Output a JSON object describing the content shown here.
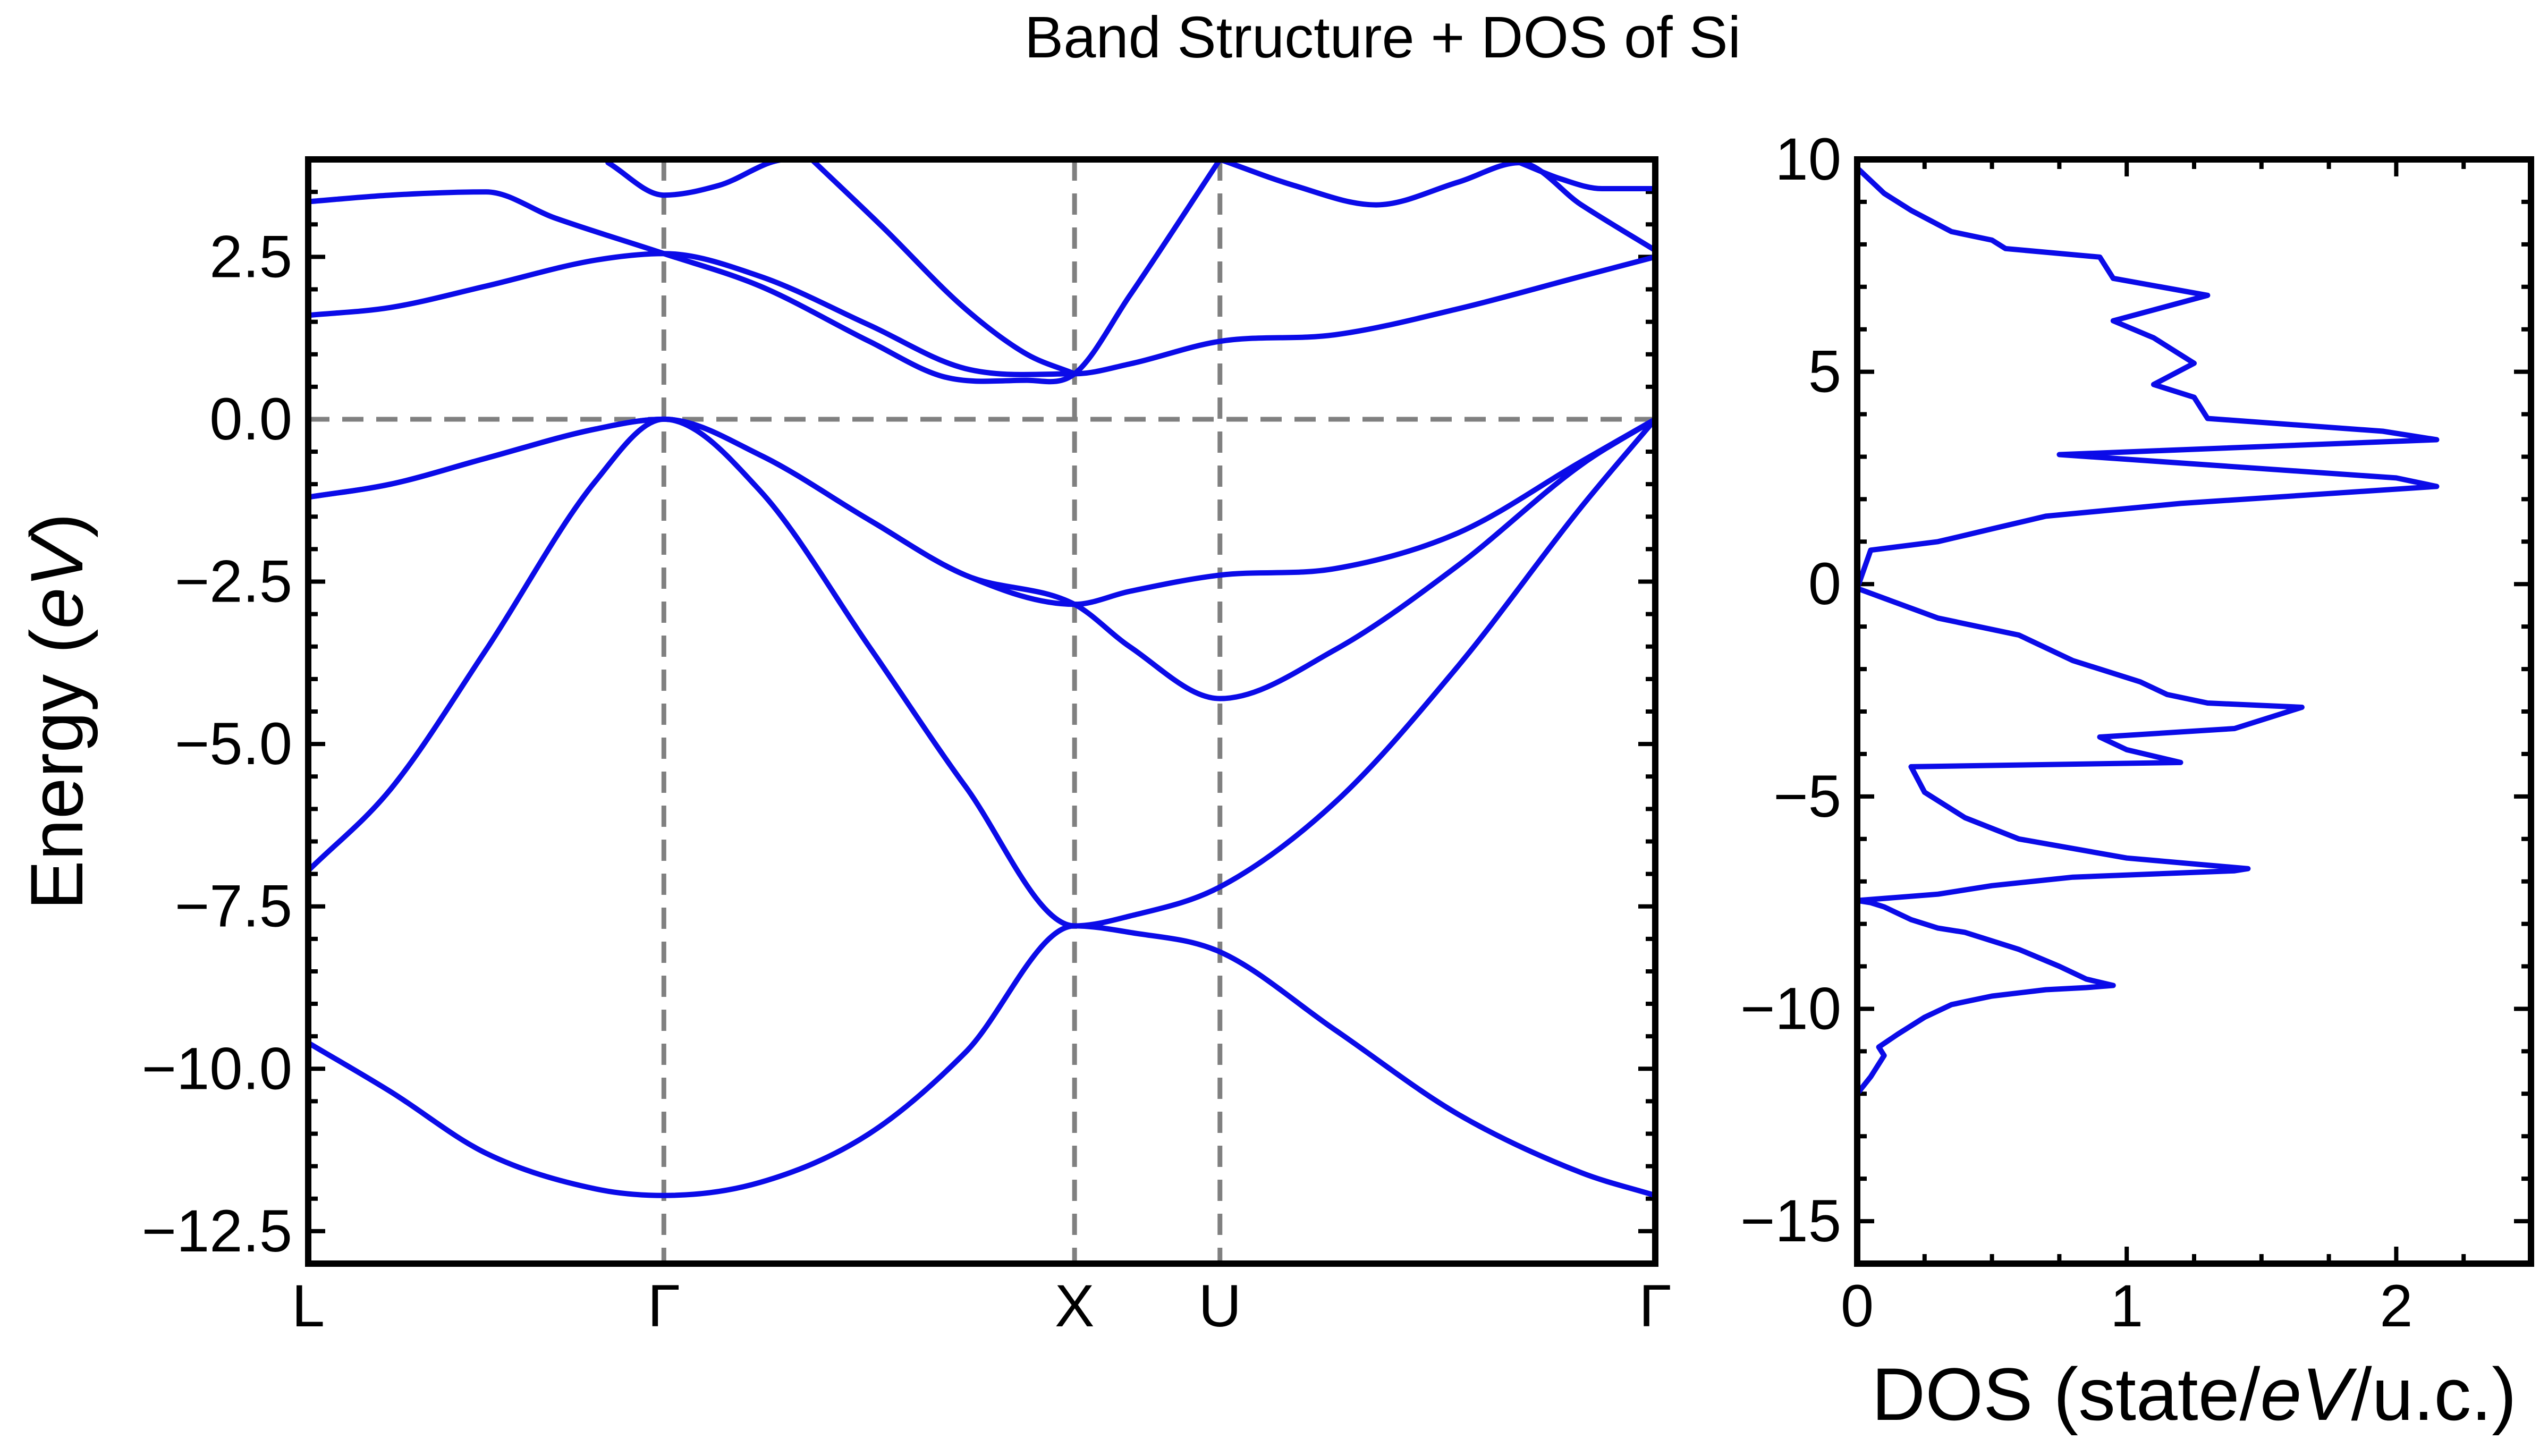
{
  "figure": {
    "title": "Band Structure + DOS of Si"
  },
  "chart_data": [
    {
      "type": "line",
      "name": "band-structure",
      "ylabel_main": "Energy (",
      "ylabel_unit": "eV",
      "ylabel_close": ")",
      "ylim": [
        -13.0,
        4.0
      ],
      "ytick_values": [
        -12.5,
        -10.0,
        -7.5,
        -5.0,
        -2.5,
        0.0,
        2.5
      ],
      "ytick_labels": [
        "−12.5",
        "−10.0",
        "−7.5",
        "−5.0",
        "−2.5",
        "0.0",
        "2.5"
      ],
      "kpoint_positions": [
        0.0,
        0.866,
        1.866,
        2.22,
        3.28
      ],
      "kpoint_labels": [
        "L",
        "Γ",
        "X",
        "U",
        "Γ"
      ],
      "fermi_level": 0.0,
      "grid": false,
      "bands": [
        {
          "x": [
            0,
            0.2,
            0.433,
            0.7,
            0.866,
            1.1,
            1.366,
            1.6,
            1.866,
            2.0,
            2.22,
            2.5,
            2.8,
            3.1,
            3.28
          ],
          "y": [
            -9.6,
            -10.35,
            -11.3,
            -11.85,
            -11.95,
            -11.75,
            -11.0,
            -9.75,
            -7.8,
            -7.9,
            -8.2,
            -9.4,
            -10.7,
            -11.6,
            -11.95
          ]
        },
        {
          "x": [
            0,
            0.2,
            0.433,
            0.7,
            0.866,
            1.1,
            1.366,
            1.6,
            1.866,
            2.0,
            2.22,
            2.5,
            2.8,
            3.1,
            3.28
          ],
          "y": [
            -6.95,
            -5.7,
            -3.55,
            -0.95,
            0.0,
            -1.1,
            -3.5,
            -5.65,
            -7.8,
            -7.65,
            -7.2,
            -5.9,
            -3.8,
            -1.35,
            0.0
          ]
        },
        {
          "x": [
            0,
            0.2,
            0.433,
            0.7,
            0.866,
            1.1,
            1.366,
            1.6,
            1.866,
            2.0,
            2.22,
            2.5,
            2.8,
            3.1,
            3.28
          ],
          "y": [
            -1.2,
            -1.0,
            -0.6,
            -0.15,
            0.0,
            -0.55,
            -1.55,
            -2.4,
            -2.85,
            -3.5,
            -4.3,
            -3.55,
            -2.25,
            -0.7,
            0.0
          ]
        },
        {
          "x": [
            0,
            0.2,
            0.433,
            0.7,
            0.866,
            1.1,
            1.366,
            1.6,
            1.866,
            2.0,
            2.22,
            2.5,
            2.8,
            3.1,
            3.28
          ],
          "y": [
            -1.2,
            -1.0,
            -0.6,
            -0.15,
            0.0,
            -0.55,
            -1.55,
            -2.4,
            -2.85,
            -2.65,
            -2.4,
            -2.3,
            -1.75,
            -0.65,
            0.0
          ]
        },
        {
          "x": [
            0,
            0.2,
            0.433,
            0.7,
            0.866,
            1.1,
            1.366,
            1.6,
            1.866,
            2.0,
            2.22,
            2.5,
            2.8,
            3.1,
            3.28
          ],
          "y": [
            1.6,
            1.72,
            2.05,
            2.45,
            2.55,
            2.2,
            1.45,
            0.78,
            0.7,
            0.85,
            1.2,
            1.3,
            1.7,
            2.2,
            2.5
          ]
        },
        {
          "x": [
            0,
            0.2,
            0.433,
            0.6,
            0.866,
            1.1,
            1.366,
            1.55,
            1.75,
            1.866,
            2.0,
            2.22
          ],
          "y": [
            3.35,
            3.45,
            3.5,
            3.1,
            2.55,
            2.05,
            1.2,
            0.65,
            0.6,
            0.7,
            1.9,
            4.0
          ]
        },
        {
          "x": [
            0.73,
            0.866,
            1.0,
            1.166,
            1.25
          ],
          "y": [
            3.95,
            3.45,
            3.6,
            4.0,
            4.0
          ]
        },
        {
          "x": [
            1.226,
            1.4,
            1.6,
            1.75,
            1.866
          ],
          "y": [
            4.0,
            2.95,
            1.7,
            1.0,
            0.7
          ]
        },
        {
          "x": [
            2.22,
            2.4,
            2.6,
            2.8,
            2.95,
            3.1,
            3.28
          ],
          "y": [
            4.0,
            3.6,
            3.3,
            3.65,
            3.95,
            3.3,
            2.6
          ]
        },
        {
          "x": [
            2.95,
            3.05,
            3.15,
            3.28
          ],
          "y": [
            3.95,
            3.7,
            3.55,
            3.55
          ]
        }
      ]
    },
    {
      "type": "line",
      "name": "dos",
      "xlabel_main": "DOS (state/",
      "xlabel_unit": "eV",
      "xlabel_close": "/u.c.)",
      "xlim": [
        0.0,
        2.5
      ],
      "ylim": [
        -16.0,
        10.0
      ],
      "xtick_values": [
        0,
        1,
        2
      ],
      "xtick_labels": [
        "0",
        "1",
        "2"
      ],
      "ytick_values": [
        -15,
        -10,
        -5,
        0,
        5,
        10
      ],
      "ytick_labels": [
        "−15",
        "−10",
        "−5",
        "0",
        "5",
        "10"
      ],
      "dos": [
        0.0,
        0.05,
        0.1,
        0.08,
        0.15,
        0.25,
        0.35,
        0.5,
        0.7,
        0.85,
        0.95,
        0.85,
        0.75,
        0.6,
        0.4,
        0.3,
        0.25,
        0.2,
        0.1,
        0.05,
        0.0,
        0.3,
        0.5,
        0.8,
        1.4,
        1.45,
        1.0,
        0.6,
        0.4,
        0.25,
        0.2,
        1.2,
        1.0,
        0.9,
        1.4,
        1.65,
        1.3,
        1.15,
        1.05,
        0.8,
        0.6,
        0.3,
        0.0,
        0.05,
        0.3,
        0.5,
        0.7,
        1.2,
        2.15,
        2.0,
        0.75,
        2.15,
        1.95,
        1.3,
        1.25,
        1.1,
        1.25,
        1.15,
        1.1,
        0.95,
        1.3,
        0.95,
        0.9,
        0.55,
        0.5,
        0.35,
        0.2,
        0.1,
        0.0
      ],
      "energy": [
        -12.0,
        -11.6,
        -11.1,
        -10.9,
        -10.6,
        -10.2,
        -9.9,
        -9.7,
        -9.55,
        -9.5,
        -9.45,
        -9.3,
        -9.0,
        -8.6,
        -8.2,
        -8.1,
        -8.0,
        -7.9,
        -7.6,
        -7.5,
        -7.45,
        -7.3,
        -7.1,
        -6.9,
        -6.75,
        -6.7,
        -6.45,
        -6.0,
        -5.5,
        -4.9,
        -4.3,
        -4.2,
        -3.9,
        -3.6,
        -3.4,
        -2.9,
        -2.8,
        -2.6,
        -2.3,
        -1.8,
        -1.2,
        -0.8,
        -0.1,
        0.8,
        1.0,
        1.3,
        1.6,
        1.9,
        2.3,
        2.5,
        3.05,
        3.4,
        3.6,
        3.9,
        4.4,
        4.7,
        5.2,
        5.6,
        5.8,
        6.2,
        6.8,
        7.2,
        7.7,
        7.9,
        8.1,
        8.3,
        8.8,
        9.2,
        9.8
      ]
    }
  ]
}
